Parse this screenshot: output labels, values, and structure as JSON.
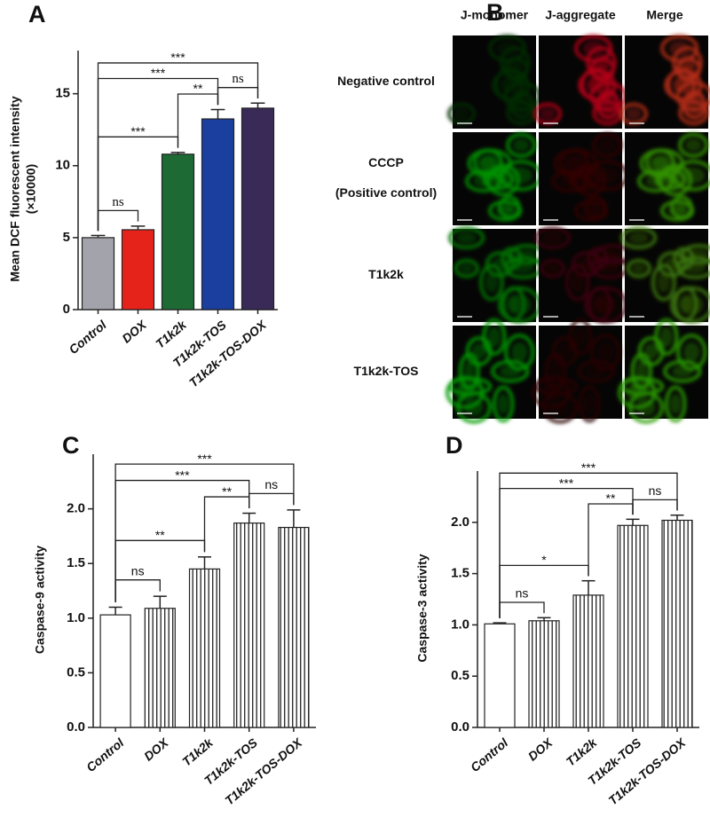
{
  "chart_data": [
    {
      "type": "bar",
      "label": "A",
      "ylabel": "Mean DCF fluorescent intensity",
      "ylabel_line2": "(×10000)",
      "categories": [
        "Control",
        "DOX",
        "T1k2k",
        "T1k2k-TOS",
        "T1k2k-TOS-DOX"
      ],
      "values": [
        5.0,
        5.55,
        10.8,
        13.25,
        14.0
      ],
      "errors": [
        0.15,
        0.25,
        0.12,
        0.65,
        0.35
      ],
      "colors": [
        "#a3a3ab",
        "#e6231b",
        "#1d6a35",
        "#1b3f9e",
        "#3a2a58"
      ],
      "ylim": [
        0,
        18
      ],
      "yticks": [
        0,
        5,
        10,
        15
      ],
      "significance": [
        {
          "from": "Control",
          "to": "DOX",
          "label": "ns"
        },
        {
          "from": "Control",
          "to": "T1k2k",
          "label": "***"
        },
        {
          "from": "T1k2k",
          "to": "T1k2k-TOS",
          "label": "**"
        },
        {
          "from": "T1k2k-TOS",
          "to": "T1k2k-TOS-DOX",
          "label": "ns"
        },
        {
          "from": "Control",
          "to": "T1k2k-TOS",
          "label": "***"
        },
        {
          "from": "Control",
          "to": "T1k2k-TOS-DOX",
          "label": "***"
        }
      ]
    },
    {
      "type": "bar",
      "label": "C",
      "ylabel": "Caspase-9 activity",
      "categories": [
        "Control",
        "DOX",
        "T1k2k",
        "T1k2k-TOS",
        "T1k2k-TOS-DOX"
      ],
      "values": [
        1.03,
        1.09,
        1.45,
        1.87,
        1.83
      ],
      "errors": [
        0.07,
        0.11,
        0.11,
        0.09,
        0.16
      ],
      "fills": [
        "white",
        "stripes",
        "stripes",
        "stripes",
        "stripes"
      ],
      "ylim": [
        0,
        2.5
      ],
      "yticks": [
        {
          "value": 0,
          "label": "0.0"
        },
        {
          "value": 0.5,
          "label": "0.5"
        },
        {
          "value": 1,
          "label": "1.0"
        },
        {
          "value": 1.5,
          "label": "1.5"
        },
        {
          "value": 2,
          "label": "2.0"
        }
      ],
      "significance": [
        {
          "from": "Control",
          "to": "DOX",
          "label": "ns"
        },
        {
          "from": "Control",
          "to": "T1k2k",
          "label": "**"
        },
        {
          "from": "T1k2k",
          "to": "T1k2k-TOS",
          "label": "**"
        },
        {
          "from": "T1k2k-TOS",
          "to": "T1k2k-TOS-DOX",
          "label": "ns"
        },
        {
          "from": "Control",
          "to": "T1k2k-TOS",
          "label": "***"
        },
        {
          "from": "Control",
          "to": "T1k2k-TOS-DOX",
          "label": "***"
        }
      ]
    },
    {
      "type": "bar",
      "label": "D",
      "ylabel": "Caspase-3 activity",
      "categories": [
        "Control",
        "DOX",
        "T1k2k",
        "T1k2k-TOS",
        "T1k2k-TOS-DOX"
      ],
      "values": [
        1.01,
        1.04,
        1.29,
        1.97,
        2.02
      ],
      "errors": [
        0.01,
        0.03,
        0.14,
        0.06,
        0.05
      ],
      "fills": [
        "white",
        "stripes",
        "stripes",
        "stripes",
        "stripes"
      ],
      "ylim": [
        0,
        2.5
      ],
      "yticks": [
        {
          "value": 0,
          "label": "0.0"
        },
        {
          "value": 0.5,
          "label": "0.5"
        },
        {
          "value": 1,
          "label": "1.0"
        },
        {
          "value": 1.5,
          "label": "1.5"
        },
        {
          "value": 2,
          "label": "2.0"
        }
      ],
      "significance": [
        {
          "from": "Control",
          "to": "DOX",
          "label": "ns"
        },
        {
          "from": "Control",
          "to": "T1k2k",
          "label": "*"
        },
        {
          "from": "T1k2k",
          "to": "T1k2k-TOS",
          "label": "**"
        },
        {
          "from": "T1k2k-TOS",
          "to": "T1k2k-TOS-DOX",
          "label": "ns"
        },
        {
          "from": "Control",
          "to": "T1k2k-TOS",
          "label": "***"
        },
        {
          "from": "Control",
          "to": "T1k2k-TOS-DOX",
          "label": "***"
        }
      ]
    }
  ],
  "panel_b": {
    "label": "B",
    "columns": [
      "J-monomer",
      "J-aggregate",
      "Merge"
    ],
    "rows": [
      [
        "Negative control"
      ],
      [
        "CCCP",
        "(Positive control)"
      ],
      [
        "T1k2k"
      ],
      [
        "T1k2k-TOS"
      ]
    ]
  }
}
